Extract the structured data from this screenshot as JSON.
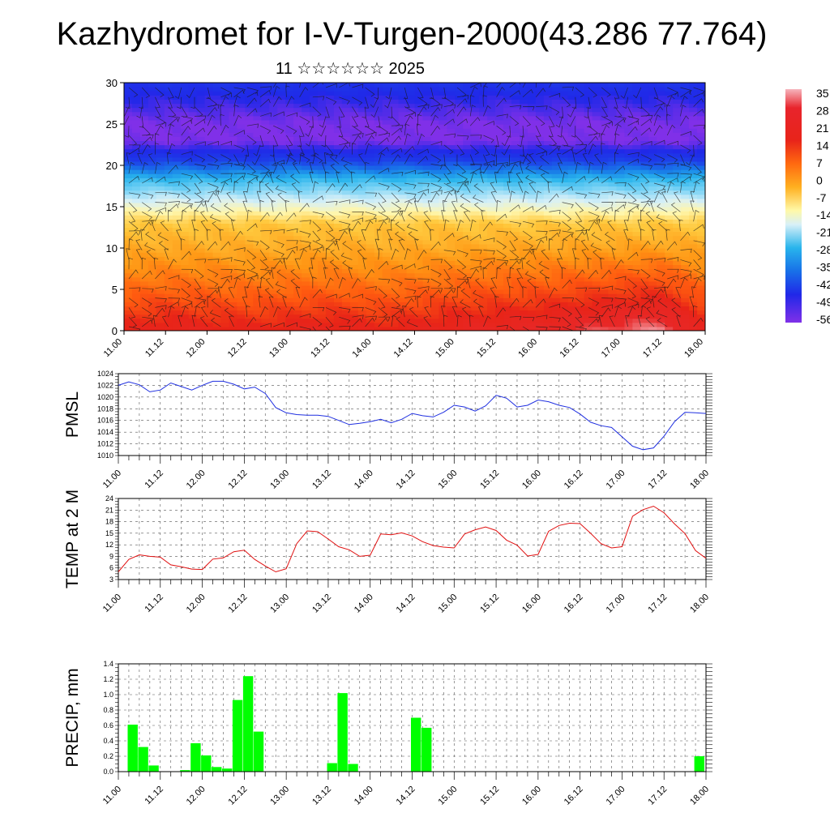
{
  "title": "Kazhydromet for I-V-Turgen-2000(43.286 77.764)",
  "subtitle": "11 ☆☆☆☆☆☆ 2025",
  "time_labels": [
    "11.00",
    "11.12",
    "12.00",
    "12.12",
    "13.00",
    "13.12",
    "14.00",
    "14.12",
    "15.00",
    "15.12",
    "16.00",
    "16.12",
    "17.00",
    "17.12",
    "18.00"
  ],
  "colors": {
    "pmsl_line": "#1f2fe0",
    "temp_line": "#e01010",
    "precip_bar": "#00ff00"
  },
  "chart_data": [
    {
      "type": "heatmap",
      "name": "vertical-temperature-section",
      "xlabel": "",
      "ylabel": "",
      "ylim": [
        0,
        30
      ],
      "yticks": [
        0,
        5,
        10,
        15,
        20,
        25,
        30
      ],
      "colorbar_labels": [
        "35",
        "28",
        "21",
        "14",
        "7",
        "0",
        "-7",
        "-14",
        "-21",
        "-28",
        "-35",
        "-42",
        "-49",
        "-56"
      ],
      "levels_km": [
        0,
        5,
        10,
        15,
        20,
        25,
        30
      ],
      "surface_temps": [
        22,
        24,
        23,
        22,
        23,
        24,
        22,
        23,
        25,
        26,
        27,
        29,
        31,
        33,
        24
      ],
      "level_temps": {
        "0": 22,
        "5": 12,
        "10": 4,
        "13": 0,
        "15": -10,
        "18": -25,
        "20": -38,
        "23": -56,
        "25": -56,
        "28": -50,
        "30": -45
      },
      "wind_barbs": "dense field of wind barbs over the whole section"
    },
    {
      "type": "line",
      "name": "pmsl",
      "ylabel": "PMSL",
      "ylim": [
        1010,
        1024
      ],
      "yticks": [
        1010,
        1012,
        1014,
        1016,
        1018,
        1020,
        1022,
        1024
      ],
      "x_hours": [
        0,
        3,
        6,
        9,
        12,
        15,
        18,
        21,
        24,
        27,
        30,
        33,
        36,
        39,
        42,
        45,
        48,
        51,
        54,
        57,
        60,
        63,
        66,
        69,
        72,
        75,
        78,
        81,
        84,
        87,
        90,
        93,
        96,
        99,
        102,
        105,
        108,
        111,
        114,
        117,
        120,
        123,
        126,
        129,
        132,
        135,
        138,
        141,
        144,
        147,
        150,
        153,
        156,
        159,
        162,
        165,
        168
      ],
      "values": [
        1022.0,
        1022.6,
        1022.1,
        1020.9,
        1021.2,
        1022.4,
        1021.8,
        1021.2,
        1022.0,
        1022.7,
        1022.7,
        1022.2,
        1021.4,
        1021.7,
        1020.6,
        1018.2,
        1017.3,
        1017.0,
        1016.9,
        1016.9,
        1016.7,
        1016.0,
        1015.3,
        1015.5,
        1015.8,
        1016.2,
        1015.6,
        1016.2,
        1017.2,
        1016.8,
        1016.6,
        1017.4,
        1018.6,
        1018.3,
        1017.6,
        1018.5,
        1020.3,
        1019.8,
        1018.3,
        1018.6,
        1019.5,
        1019.2,
        1018.6,
        1018.2,
        1017.1,
        1015.7,
        1015.1,
        1014.8,
        1013.2,
        1011.6,
        1011.0,
        1011.3,
        1013.3,
        1015.8,
        1017.4,
        1017.3,
        1017.2
      ]
    },
    {
      "type": "line",
      "name": "temp-2m",
      "ylabel": "TEMP at 2 M",
      "ylim": [
        3,
        24
      ],
      "yticks": [
        3,
        6,
        9,
        12,
        15,
        18,
        21,
        24
      ],
      "x_hours": [
        0,
        3,
        6,
        9,
        12,
        15,
        18,
        21,
        24,
        27,
        30,
        33,
        36,
        39,
        42,
        45,
        48,
        51,
        54,
        57,
        60,
        63,
        66,
        69,
        72,
        75,
        78,
        81,
        84,
        87,
        90,
        93,
        96,
        99,
        102,
        105,
        108,
        111,
        114,
        117,
        120,
        123,
        126,
        129,
        132,
        135,
        138,
        141,
        144,
        147,
        150,
        153,
        156,
        159,
        162,
        165,
        168
      ],
      "values": [
        5.0,
        8.2,
        9.4,
        9.0,
        8.8,
        6.8,
        6.3,
        5.7,
        5.6,
        8.3,
        8.6,
        10.2,
        10.6,
        8.2,
        6.5,
        5.0,
        5.8,
        12.3,
        15.6,
        15.4,
        13.5,
        11.5,
        10.7,
        9.0,
        9.3,
        14.8,
        14.6,
        15.1,
        14.3,
        12.8,
        11.8,
        11.4,
        11.2,
        14.8,
        15.9,
        16.6,
        15.7,
        13.2,
        11.9,
        9.1,
        9.5,
        15.5,
        17.0,
        17.6,
        17.5,
        15.0,
        12.3,
        11.2,
        11.5,
        19.4,
        21.1,
        22.0,
        20.3,
        17.4,
        14.9,
        10.5,
        8.5
      ]
    },
    {
      "type": "bar",
      "name": "precip",
      "ylabel": "PRECIP, mm",
      "ylim": [
        0,
        1.4
      ],
      "yticks": [
        "0.0",
        "0.2",
        "0.4",
        "0.6",
        "0.8",
        "1.0",
        "1.2",
        "1.4"
      ],
      "x_hours": [
        3,
        6,
        9,
        18,
        21,
        24,
        27,
        30,
        33,
        36,
        39,
        60,
        63,
        66,
        84,
        87,
        165
      ],
      "values": [
        0.61,
        0.32,
        0.08,
        0.02,
        0.37,
        0.21,
        0.06,
        0.04,
        0.93,
        1.24,
        0.52,
        0.11,
        1.02,
        0.1,
        0.7,
        0.57,
        0.2
      ]
    }
  ]
}
